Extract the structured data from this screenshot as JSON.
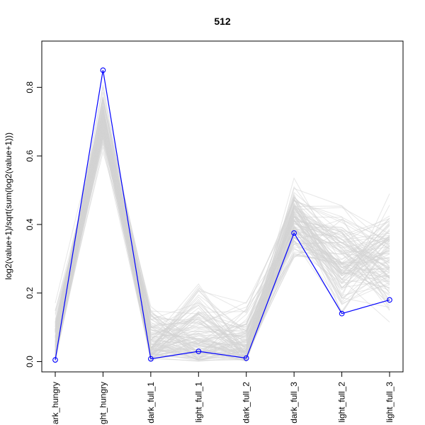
{
  "chart_data": {
    "type": "line",
    "title": "512",
    "ylabel": "log2(value+1)/sqrt(sum(log2(value+1)))",
    "xlabel": "",
    "categories": [
      "dark_hungry",
      "light_hungry",
      "dark_full_1",
      "light_full_1",
      "dark_full_2",
      "dark_full_3",
      "light_full_2",
      "light_full_3"
    ],
    "category_labels_visible": [
      "ark_hungry",
      "ght_hungry",
      "dark_full_1",
      "light_full_1",
      "dark_full_2",
      "dark_full_3",
      "light_full_2",
      "light_full_3"
    ],
    "yticks": [
      0.0,
      0.2,
      0.4,
      0.6,
      0.8
    ],
    "ytick_labels": [
      "0.0",
      "0.2",
      "0.4",
      "0.6",
      "0.8"
    ],
    "ylim": [
      -0.03,
      0.935
    ],
    "grid": false,
    "colors": {
      "highlight": "#0000ff",
      "background_lines": "#d3d3d3"
    },
    "series": [
      {
        "values": [
          0.005,
          0.85,
          0.008,
          0.03,
          0.01,
          0.375,
          0.14,
          0.18
        ],
        "color": "#0000ff",
        "marker": "open-circle"
      }
    ],
    "background_profiles": {
      "description": "Many gray profile lines sharing the same clusters",
      "count": 110,
      "centers": [
        0.0,
        0.8,
        0.0,
        0.0,
        0.0,
        0.4,
        0.3,
        0.3
      ],
      "spreads": [
        0.1,
        0.12,
        0.15,
        0.18,
        0.15,
        0.16,
        0.22,
        0.22
      ]
    }
  }
}
